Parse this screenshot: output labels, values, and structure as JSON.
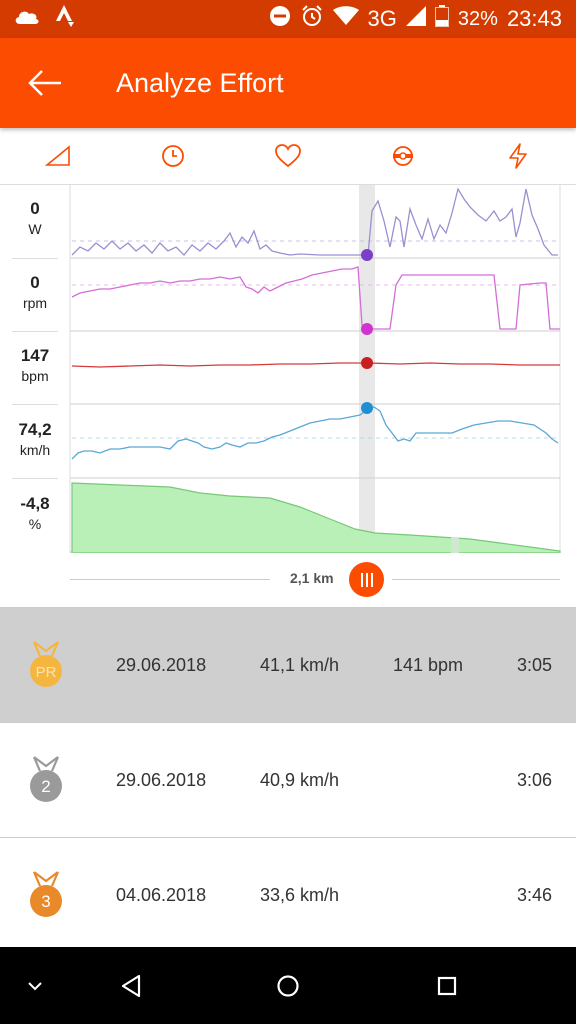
{
  "status": {
    "network": "3G",
    "battery": "32%",
    "time": "23:43",
    "icons": [
      "cloud-icon",
      "strava-icon",
      "dnd-icon",
      "alarm-icon",
      "wifi-icon",
      "signal-icon",
      "battery-icon"
    ]
  },
  "header": {
    "title": "Analyze Effort"
  },
  "tabs": [
    {
      "icon": "grade-icon"
    },
    {
      "icon": "clock-icon"
    },
    {
      "icon": "heart-icon"
    },
    {
      "icon": "cadence-icon"
    },
    {
      "icon": "power-icon"
    }
  ],
  "metrics": [
    {
      "value": "0",
      "unit": "W"
    },
    {
      "value": "0",
      "unit": "rpm"
    },
    {
      "value": "147",
      "unit": "bpm"
    },
    {
      "value": "74,2",
      "unit": "km/h"
    },
    {
      "value": "-4,8",
      "unit": "%"
    }
  ],
  "scrubber": {
    "distance": "2,1 km"
  },
  "colors": {
    "accent": "#fc4c02",
    "power": "#9b8fd0",
    "cadence": "#d46ed6",
    "heart": "#d43a3a",
    "speed": "#5aa8d6",
    "grade_fill": "#b8f0b8",
    "grade_line": "#78c878"
  },
  "efforts": [
    {
      "rank": "PR",
      "medal_color": "#f5b640",
      "date": "29.06.2018",
      "speed": "41,1 km/h",
      "heart_rate": "141 bpm",
      "time": "3:05"
    },
    {
      "rank": "2",
      "medal_color": "#9a9a9a",
      "date": "29.06.2018",
      "speed": "40,9 km/h",
      "heart_rate": "",
      "time": "3:06"
    },
    {
      "rank": "3",
      "medal_color": "#e8892a",
      "date": "04.06.2018",
      "speed": "33,6 km/h",
      "heart_rate": "",
      "time": "3:46"
    }
  ],
  "nav": {
    "icons": [
      "chevron-down-icon",
      "back-triangle-icon",
      "home-circle-icon",
      "recents-square-icon"
    ]
  }
}
